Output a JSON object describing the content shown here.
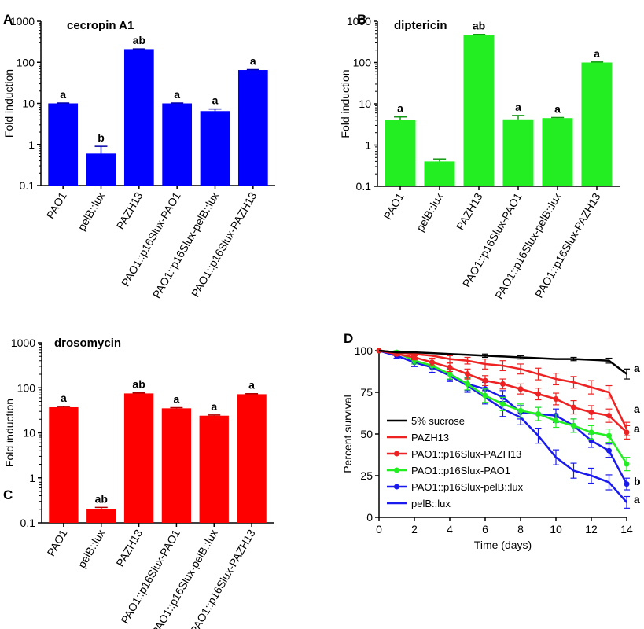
{
  "chart_data": [
    {
      "panel": "A",
      "type": "bar",
      "title": "cecropin A1",
      "ylabel": "Fold induction",
      "yscale": "log",
      "ylim": [
        0.1,
        1000
      ],
      "yticks": [
        "0.1",
        "1",
        "10",
        "100",
        "1000"
      ],
      "categories": [
        "PAO1",
        "pelB::lux",
        "PAZH13",
        "PAO1::p16Slux-PAO1",
        "PAO1::p16Slux-pelB::lux",
        "PAO1::p16Slux-PAZH13"
      ],
      "values": [
        10,
        0.6,
        210,
        10,
        6.5,
        65
      ],
      "errors": [
        0.2,
        0.3,
        3,
        0.2,
        0.8,
        1.5
      ],
      "significance": [
        "a",
        "b",
        "ab",
        "a",
        "a",
        "a"
      ],
      "color": "#0000ff"
    },
    {
      "panel": "B",
      "type": "bar",
      "title": "diptericin",
      "ylabel": "Fold induction",
      "yscale": "log",
      "ylim": [
        0.1,
        1000
      ],
      "yticks": [
        "0.1",
        "1",
        "10",
        "100",
        "1000"
      ],
      "categories": [
        "PAO1",
        "pelB::lux",
        "PAZH13",
        "PAO1::p16Slux-PAO1",
        "PAO1::p16Slux-pelB::lux",
        "PAO1::p16Slux-PAZH13"
      ],
      "values": [
        4.0,
        0.4,
        470,
        4.2,
        4.5,
        100
      ],
      "errors": [
        0.8,
        0.06,
        10,
        1.0,
        0.15,
        3
      ],
      "significance": [
        "a",
        "",
        "ab",
        "a",
        "a",
        "a"
      ],
      "color": "#22ee22"
    },
    {
      "panel": "C",
      "type": "bar",
      "title": "drosomycin",
      "ylabel": "Fold induction",
      "yscale": "log",
      "ylim": [
        0.1,
        1000
      ],
      "yticks": [
        "0.1",
        "1",
        "10",
        "100",
        "1000"
      ],
      "categories": [
        "PAO1",
        "pelB::lux",
        "PAZH13",
        "PAO1::p16Slux-PAO1",
        "PAO1::p16Slux-pelB::lux",
        "PAO1::p16Slux-PAZH13"
      ],
      "values": [
        37,
        0.2,
        75,
        35,
        24,
        72
      ],
      "errors": [
        1.2,
        0.02,
        2,
        1.2,
        0.8,
        2
      ],
      "significance": [
        "a",
        "ab",
        "ab",
        "a",
        "a",
        "a"
      ],
      "color": "#ff0000"
    },
    {
      "panel": "D",
      "type": "line",
      "xlabel": "Time (days)",
      "ylabel": "Percent survival",
      "xlim": [
        0,
        14
      ],
      "ylim": [
        0,
        100
      ],
      "xticks": [
        "0",
        "2",
        "4",
        "6",
        "8",
        "10",
        "12",
        "14"
      ],
      "yticks": [
        "0",
        "25",
        "50",
        "75",
        "100"
      ],
      "series": [
        {
          "name": "5% sucrose",
          "color": "#000000",
          "markers": false,
          "significance": "a",
          "x": [
            0,
            1,
            2,
            3,
            4,
            5,
            6,
            7,
            8,
            9,
            10,
            11,
            12,
            13,
            14
          ],
          "y": [
            100,
            99,
            99,
            98.5,
            98,
            97.5,
            97,
            96.5,
            96,
            95.5,
            95,
            95,
            94.5,
            94,
            86
          ],
          "err": [
            0,
            0,
            0,
            0,
            0,
            0,
            1,
            0,
            1,
            0,
            0,
            1,
            0,
            1.5,
            3
          ]
        },
        {
          "name": "PAZH13",
          "color": "#ee2222",
          "markers": false,
          "significance": "a",
          "x": [
            0,
            1,
            2,
            3,
            4,
            5,
            6,
            7,
            8,
            9,
            10,
            11,
            12,
            13,
            14
          ],
          "y": [
            100,
            99,
            98,
            97,
            95,
            94,
            92,
            91,
            89,
            86,
            83,
            81,
            78,
            75,
            53
          ],
          "err": [
            0,
            0,
            1,
            1.5,
            2,
            2,
            3,
            3,
            3,
            3.5,
            3.5,
            3.5,
            4,
            4,
            4
          ]
        },
        {
          "name": "PAO1::p16Slux-PAZH13",
          "color": "#ee2222",
          "markers": true,
          "significance": "a",
          "x": [
            0,
            1,
            2,
            3,
            4,
            5,
            6,
            7,
            8,
            9,
            10,
            11,
            12,
            13,
            14
          ],
          "y": [
            100,
            98,
            96,
            93,
            90,
            86,
            82,
            80,
            77,
            74,
            71,
            66,
            63,
            61,
            51
          ],
          "err": [
            0,
            1,
            1.5,
            2,
            2.5,
            3,
            3,
            3,
            3,
            3.5,
            3.5,
            4,
            4,
            4,
            4
          ]
        },
        {
          "name": "PAO1::p16Slux-PAO1",
          "color": "#22ee22",
          "markers": true,
          "significance": "b",
          "x": [
            0,
            1,
            2,
            3,
            4,
            5,
            6,
            7,
            8,
            9,
            10,
            11,
            12,
            13,
            14
          ],
          "y": [
            100,
            99,
            94,
            91,
            86,
            80,
            73,
            68,
            64,
            62,
            58,
            55,
            51,
            49,
            32
          ],
          "err": [
            0,
            1,
            2,
            2.5,
            3,
            3.5,
            4,
            4,
            4,
            4,
            4,
            4,
            4,
            4,
            4
          ]
        },
        {
          "name": "PAO1::p16Slux-pelB::lux",
          "color": "#1a1aee",
          "markers": true,
          "significance": "b",
          "x": [
            0,
            1,
            2,
            3,
            4,
            5,
            6,
            7,
            8,
            9,
            10,
            11,
            12,
            13,
            14
          ],
          "y": [
            100,
            97,
            93,
            90,
            86,
            80,
            77,
            72,
            63,
            62,
            61,
            55,
            46,
            40,
            20
          ],
          "err": [
            0,
            1.5,
            2.5,
            3,
            3.5,
            4,
            4,
            4,
            4,
            4,
            4,
            4,
            4,
            4,
            3.5
          ]
        },
        {
          "name": "pelB::lux",
          "color": "#1a1aee",
          "markers": false,
          "significance": "a",
          "x": [
            0,
            1,
            2,
            3,
            4,
            5,
            6,
            7,
            8,
            9,
            10,
            11,
            12,
            13,
            14
          ],
          "y": [
            100,
            97,
            93,
            90,
            85,
            79,
            72,
            65,
            60,
            49,
            36,
            28,
            25,
            21,
            9
          ],
          "err": [
            0,
            1.5,
            2.5,
            3,
            3.5,
            4,
            4,
            4.5,
            4.5,
            4.5,
            4.5,
            4.5,
            4.5,
            4.5,
            3.5
          ]
        }
      ],
      "right_labels": [
        "a",
        "a",
        "a",
        "b",
        "a"
      ]
    }
  ]
}
